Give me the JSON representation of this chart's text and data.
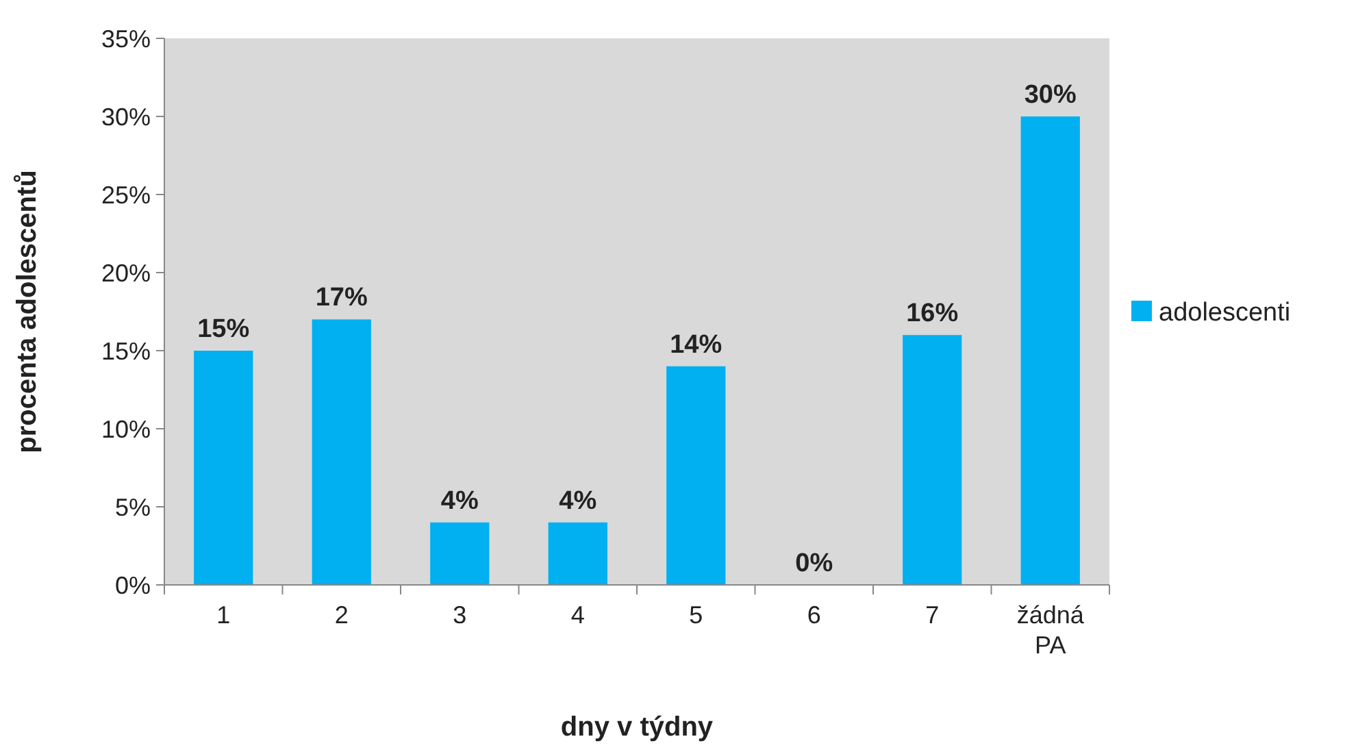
{
  "chart_data": {
    "type": "bar",
    "xlabel": "dny v týdny",
    "ylabel": "procenta adolescentů",
    "categories": [
      "1",
      "2",
      "3",
      "4",
      "5",
      "6",
      "7",
      "žádná PA"
    ],
    "series": [
      {
        "name": "adolescenti",
        "color": "#00b0f0",
        "values": [
          15,
          17,
          4,
          4,
          14,
          0,
          16,
          30
        ],
        "value_labels": [
          "15%",
          "17%",
          "4%",
          "4%",
          "14%",
          "0%",
          "16%",
          "30%"
        ]
      }
    ],
    "ylim": [
      0,
      35
    ],
    "yticks": [
      {
        "value": 0,
        "label": "0%"
      },
      {
        "value": 5,
        "label": "5%"
      },
      {
        "value": 10,
        "label": "10%"
      },
      {
        "value": 15,
        "label": "15%"
      },
      {
        "value": 20,
        "label": "20%"
      },
      {
        "value": 25,
        "label": "25%"
      },
      {
        "value": 30,
        "label": "30%"
      },
      {
        "value": 35,
        "label": "35%"
      }
    ],
    "grid": false,
    "legend": "right"
  }
}
